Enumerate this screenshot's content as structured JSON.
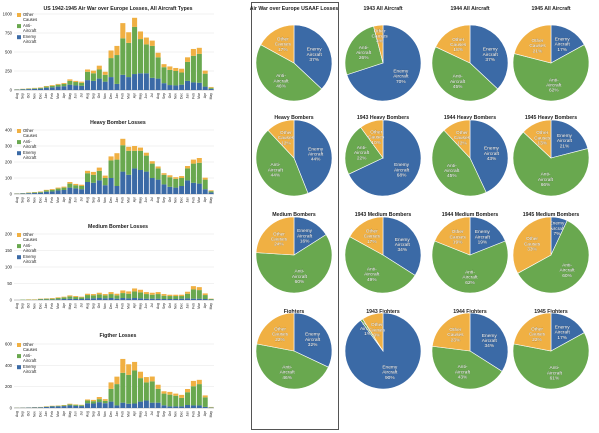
{
  "colors": {
    "enemy": "#3b6aa6",
    "anti": "#69a84f",
    "other": "#f0b043",
    "axis": "#999999",
    "text": "#222222"
  },
  "legend_labels": {
    "other": [
      "Other",
      "Causes"
    ],
    "anti": [
      "Anti-",
      "Aircraft"
    ],
    "enemy": [
      "Enemy",
      "Aircraft"
    ]
  },
  "month_labels": [
    "Aug",
    "Sep",
    "Oct",
    "Nov",
    "Dec",
    "Jan",
    "Feb",
    "Mar",
    "Apr",
    "May",
    "Jun",
    "Jul",
    "Aug",
    "Sep",
    "Oct",
    "Nov",
    "Dec",
    "Jan",
    "Feb",
    "Mar",
    "Apr",
    "May",
    "Jun",
    "Jul",
    "Aug",
    "Sep",
    "Oct",
    "Nov",
    "Dec",
    "Jan",
    "Feb",
    "Mar",
    "Apr",
    "May"
  ],
  "chart_data": [
    {
      "type": "bar",
      "stacked": true,
      "title": "US 1942-1945 Air War over Europe Losses, All Aircraft Types",
      "ylim": [
        0,
        1000
      ],
      "yticks": [
        0,
        250,
        500,
        750,
        1000
      ],
      "series": [
        {
          "name": "Enemy Aircraft",
          "values": [
            5,
            8,
            12,
            15,
            18,
            30,
            35,
            45,
            50,
            70,
            60,
            55,
            130,
            120,
            150,
            110,
            170,
            80,
            200,
            170,
            210,
            220,
            220,
            160,
            150,
            90,
            65,
            60,
            70,
            120,
            100,
            95,
            45,
            15
          ]
        },
        {
          "name": "Anti-Aircraft",
          "values": [
            3,
            5,
            6,
            8,
            10,
            15,
            20,
            25,
            30,
            50,
            45,
            40,
            110,
            100,
            120,
            90,
            250,
            380,
            480,
            450,
            620,
            450,
            380,
            420,
            280,
            210,
            200,
            190,
            160,
            250,
            350,
            380,
            170,
            15
          ]
        },
        {
          "name": "Other Causes",
          "values": [
            2,
            3,
            4,
            5,
            6,
            8,
            10,
            10,
            12,
            20,
            15,
            15,
            30,
            35,
            50,
            40,
            100,
            120,
            200,
            140,
            120,
            100,
            90,
            70,
            60,
            40,
            45,
            40,
            50,
            60,
            90,
            80,
            40,
            10
          ]
        }
      ]
    },
    {
      "type": "bar",
      "stacked": true,
      "title": "Heavy Bomber Losses",
      "ylim": [
        0,
        400
      ],
      "yticks": [
        0,
        100,
        200,
        300,
        400
      ],
      "series": [
        {
          "name": "Enemy Aircraft",
          "values": [
            2,
            3,
            5,
            6,
            8,
            14,
            16,
            22,
            25,
            40,
            35,
            30,
            75,
            70,
            85,
            55,
            100,
            50,
            140,
            120,
            160,
            150,
            140,
            100,
            90,
            60,
            45,
            40,
            50,
            85,
            70,
            65,
            30,
            10
          ]
        },
        {
          "name": "Anti-Aircraft",
          "values": [
            1,
            2,
            3,
            4,
            5,
            8,
            10,
            12,
            15,
            25,
            20,
            20,
            55,
            50,
            60,
            45,
            110,
            165,
            165,
            150,
            110,
            120,
            100,
            90,
            70,
            60,
            60,
            55,
            50,
            75,
            120,
            130,
            60,
            8
          ]
        },
        {
          "name": "Other Causes",
          "values": [
            1,
            1,
            2,
            2,
            3,
            4,
            5,
            6,
            6,
            10,
            8,
            8,
            15,
            18,
            20,
            15,
            25,
            40,
            40,
            25,
            30,
            20,
            18,
            15,
            12,
            10,
            12,
            10,
            12,
            15,
            25,
            30,
            12,
            5
          ]
        }
      ]
    },
    {
      "type": "bar",
      "stacked": true,
      "title": "Medium Bomber Losses",
      "ylim": [
        0,
        200
      ],
      "yticks": [
        0,
        50,
        100,
        150,
        200
      ],
      "series": [
        {
          "name": "Enemy Aircraft",
          "values": [
            0,
            0,
            0,
            0,
            1,
            1,
            1,
            2,
            3,
            4,
            3,
            3,
            5,
            5,
            6,
            5,
            6,
            4,
            6,
            5,
            6,
            5,
            4,
            4,
            4,
            3,
            3,
            3,
            4,
            5,
            4,
            4,
            3,
            1
          ]
        },
        {
          "name": "Anti-Aircraft",
          "values": [
            0,
            1,
            1,
            1,
            2,
            3,
            3,
            4,
            5,
            7,
            6,
            5,
            10,
            9,
            11,
            9,
            12,
            10,
            15,
            14,
            20,
            18,
            14,
            12,
            14,
            10,
            9,
            9,
            8,
            14,
            28,
            26,
            12,
            2
          ]
        },
        {
          "name": "Other Causes",
          "values": [
            0,
            0,
            1,
            1,
            1,
            1,
            2,
            2,
            2,
            3,
            3,
            2,
            4,
            4,
            5,
            4,
            6,
            5,
            8,
            7,
            9,
            8,
            6,
            6,
            6,
            5,
            4,
            4,
            4,
            6,
            10,
            9,
            5,
            1
          ]
        }
      ]
    },
    {
      "type": "bar",
      "stacked": true,
      "title": "Figther Losses",
      "ylim": [
        0,
        600
      ],
      "yticks": [
        0,
        200,
        400,
        600
      ],
      "series": [
        {
          "name": "Enemy Aircraft",
          "values": [
            2,
            3,
            4,
            5,
            6,
            10,
            14,
            16,
            18,
            24,
            20,
            18,
            45,
            42,
            55,
            45,
            60,
            24,
            50,
            40,
            42,
            60,
            70,
            50,
            50,
            25,
            15,
            15,
            15,
            28,
            24,
            24,
            10,
            3
          ]
        },
        {
          "name": "Anti-Aircraft",
          "values": [
            1,
            1,
            1,
            2,
            2,
            3,
            4,
            5,
            6,
            10,
            10,
            8,
            25,
            22,
            28,
            22,
            120,
            200,
            280,
            270,
            310,
            220,
            170,
            200,
            130,
            110,
            110,
            100,
            80,
            120,
            180,
            200,
            90,
            4
          ]
        },
        {
          "name": "Other Causes",
          "values": [
            1,
            1,
            1,
            2,
            2,
            3,
            3,
            3,
            4,
            6,
            4,
            4,
            10,
            12,
            20,
            16,
            60,
            70,
            130,
            100,
            80,
            60,
            50,
            45,
            38,
            22,
            26,
            20,
            28,
            30,
            50,
            40,
            18,
            3
          ]
        }
      ]
    },
    {
      "type": "pie",
      "title": "Air War over Europe USAAF Losses",
      "slices": [
        {
          "name": "Enemy Aircraft",
          "value": 37
        },
        {
          "name": "Anti-Aircraft",
          "value": 46
        },
        {
          "name": "Other Causes",
          "value": 17
        }
      ]
    },
    {
      "type": "pie",
      "title": "1943 All Aircraft",
      "slices": [
        {
          "name": "Enemy Aircraft",
          "value": 70
        },
        {
          "name": "Anti-Aircraft",
          "value": 26
        },
        {
          "name": "Other Causes",
          "value": 4
        }
      ]
    },
    {
      "type": "pie",
      "title": "1944 All Aircraft",
      "slices": [
        {
          "name": "Enemy Aircraft",
          "value": 37
        },
        {
          "name": "Anti-Aircraft",
          "value": 45
        },
        {
          "name": "Other Causes",
          "value": 18
        }
      ]
    },
    {
      "type": "pie",
      "title": "1945 All Aircraft",
      "slices": [
        {
          "name": "Enemy Aircraft",
          "value": 17
        },
        {
          "name": "Anti-Aircraft",
          "value": 62
        },
        {
          "name": "Other Causes",
          "value": 21
        }
      ]
    },
    {
      "type": "pie",
      "title": "Heavy Bombers",
      "slices": [
        {
          "name": "Enemy Aircraft",
          "value": 44
        },
        {
          "name": "Anti-Aircraft",
          "value": 44
        },
        {
          "name": "Other Causes",
          "value": 12
        }
      ]
    },
    {
      "type": "pie",
      "title": "1943 Heavy Bombers",
      "slices": [
        {
          "name": "Enemy Aircraft",
          "value": 68
        },
        {
          "name": "Anti-Aircraft",
          "value": 22
        },
        {
          "name": "Other Causes",
          "value": 10
        }
      ]
    },
    {
      "type": "pie",
      "title": "1944 Heavy Bombers",
      "slices": [
        {
          "name": "Enemy Aircraft",
          "value": 43
        },
        {
          "name": "Anti-Aircraft",
          "value": 45
        },
        {
          "name": "Other Causes",
          "value": 12
        }
      ]
    },
    {
      "type": "pie",
      "title": "1945 Heavy Bombers",
      "slices": [
        {
          "name": "Enemy Aircraft",
          "value": 21
        },
        {
          "name": "Anti-Aircraft",
          "value": 66
        },
        {
          "name": "Other Causes",
          "value": 13
        }
      ]
    },
    {
      "type": "pie",
      "title": "Medium Bombers",
      "slices": [
        {
          "name": "Enemy Aircraft",
          "value": 16
        },
        {
          "name": "Anti-Aircraft",
          "value": 60
        },
        {
          "name": "Other Causes",
          "value": 24
        }
      ]
    },
    {
      "type": "pie",
      "title": "1943 Medium Bombers",
      "slices": [
        {
          "name": "Enemy Aircraft",
          "value": 34
        },
        {
          "name": "Anti-Aircraft",
          "value": 49
        },
        {
          "name": "Other Causes",
          "value": 17
        }
      ]
    },
    {
      "type": "pie",
      "title": "1944 Medium Bombers",
      "slices": [
        {
          "name": "Enemy Aircraft",
          "value": 19
        },
        {
          "name": "Anti-Aircraft",
          "value": 62
        },
        {
          "name": "Other Causes",
          "value": 19
        }
      ]
    },
    {
      "type": "pie",
      "title": "1945 Medium Bombers",
      "slices": [
        {
          "name": "Enemy Aircraft",
          "value": 7
        },
        {
          "name": "Anti-Aircraft",
          "value": 60
        },
        {
          "name": "Other Causes",
          "value": 33
        }
      ]
    },
    {
      "type": "pie",
      "title": "Fighters",
      "slices": [
        {
          "name": "Enemy Aircraft",
          "value": 32
        },
        {
          "name": "Anti-Aircraft",
          "value": 46
        },
        {
          "name": "Other Causes",
          "value": 22
        }
      ]
    },
    {
      "type": "pie",
      "title": "1943 Fighters",
      "slices": [
        {
          "name": "Enemy Aircraft",
          "value": 90
        },
        {
          "name": "Anti-Aircraft",
          "value": 1
        },
        {
          "name": "Other Causes",
          "value": 9
        }
      ]
    },
    {
      "type": "pie",
      "title": "1944 Fighters",
      "slices": [
        {
          "name": "Enemy Aircraft",
          "value": 34
        },
        {
          "name": "Anti-Aircraft",
          "value": 43
        },
        {
          "name": "Other Causes",
          "value": 23
        }
      ]
    },
    {
      "type": "pie",
      "title": "1945 Fighters",
      "slices": [
        {
          "name": "Enemy Aircraft",
          "value": 17
        },
        {
          "name": "Anti-Aircraft",
          "value": 61
        },
        {
          "name": "Other Causes",
          "value": 22
        }
      ]
    }
  ]
}
